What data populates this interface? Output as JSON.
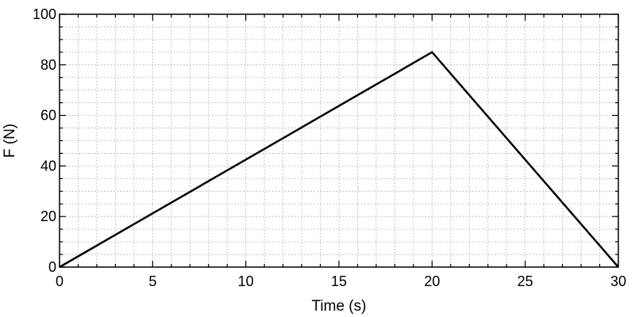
{
  "chart_data": {
    "type": "line",
    "title": "",
    "xlabel": "Time (s)",
    "ylabel": "F (N)",
    "xlim": [
      0,
      30
    ],
    "ylim": [
      0,
      100
    ],
    "x_ticks": [
      0,
      5,
      10,
      15,
      20,
      25,
      30
    ],
    "y_ticks": [
      0,
      20,
      40,
      60,
      80,
      100
    ],
    "x_minor_step": 1,
    "y_minor_step": 5,
    "grid": true,
    "series": [
      {
        "x": [
          0,
          20,
          30
        ],
        "y": [
          0,
          85,
          0
        ],
        "color": "#000000"
      }
    ]
  }
}
